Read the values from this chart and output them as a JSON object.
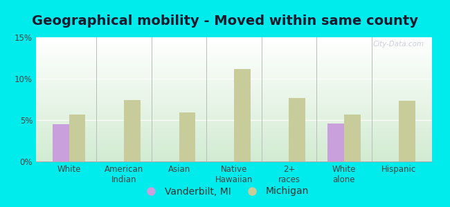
{
  "title": "Geographical mobility - Moved within same county",
  "categories": [
    "White",
    "American\nIndian",
    "Asian",
    "Native\nHawaiian",
    "2+\nraces",
    "White\nalone",
    "Hispanic"
  ],
  "vanderbilt_values": [
    4.5,
    0,
    0,
    0,
    0,
    4.6,
    0
  ],
  "michigan_values": [
    5.7,
    7.4,
    5.9,
    11.2,
    7.7,
    5.7,
    7.3
  ],
  "vanderbilt_color": "#c9a0dc",
  "michigan_color": "#c8cc9a",
  "background_outer": "#00ecec",
  "ylim": [
    0,
    15
  ],
  "yticks": [
    0,
    5,
    10,
    15
  ],
  "ytick_labels": [
    "0%",
    "5%",
    "10%",
    "15%"
  ],
  "bar_width": 0.3,
  "legend_vanderbilt": "Vanderbilt, MI",
  "legend_michigan": "Michigan",
  "watermark": "City-Data.com",
  "title_fontsize": 14,
  "tick_fontsize": 8.5,
  "legend_fontsize": 10
}
